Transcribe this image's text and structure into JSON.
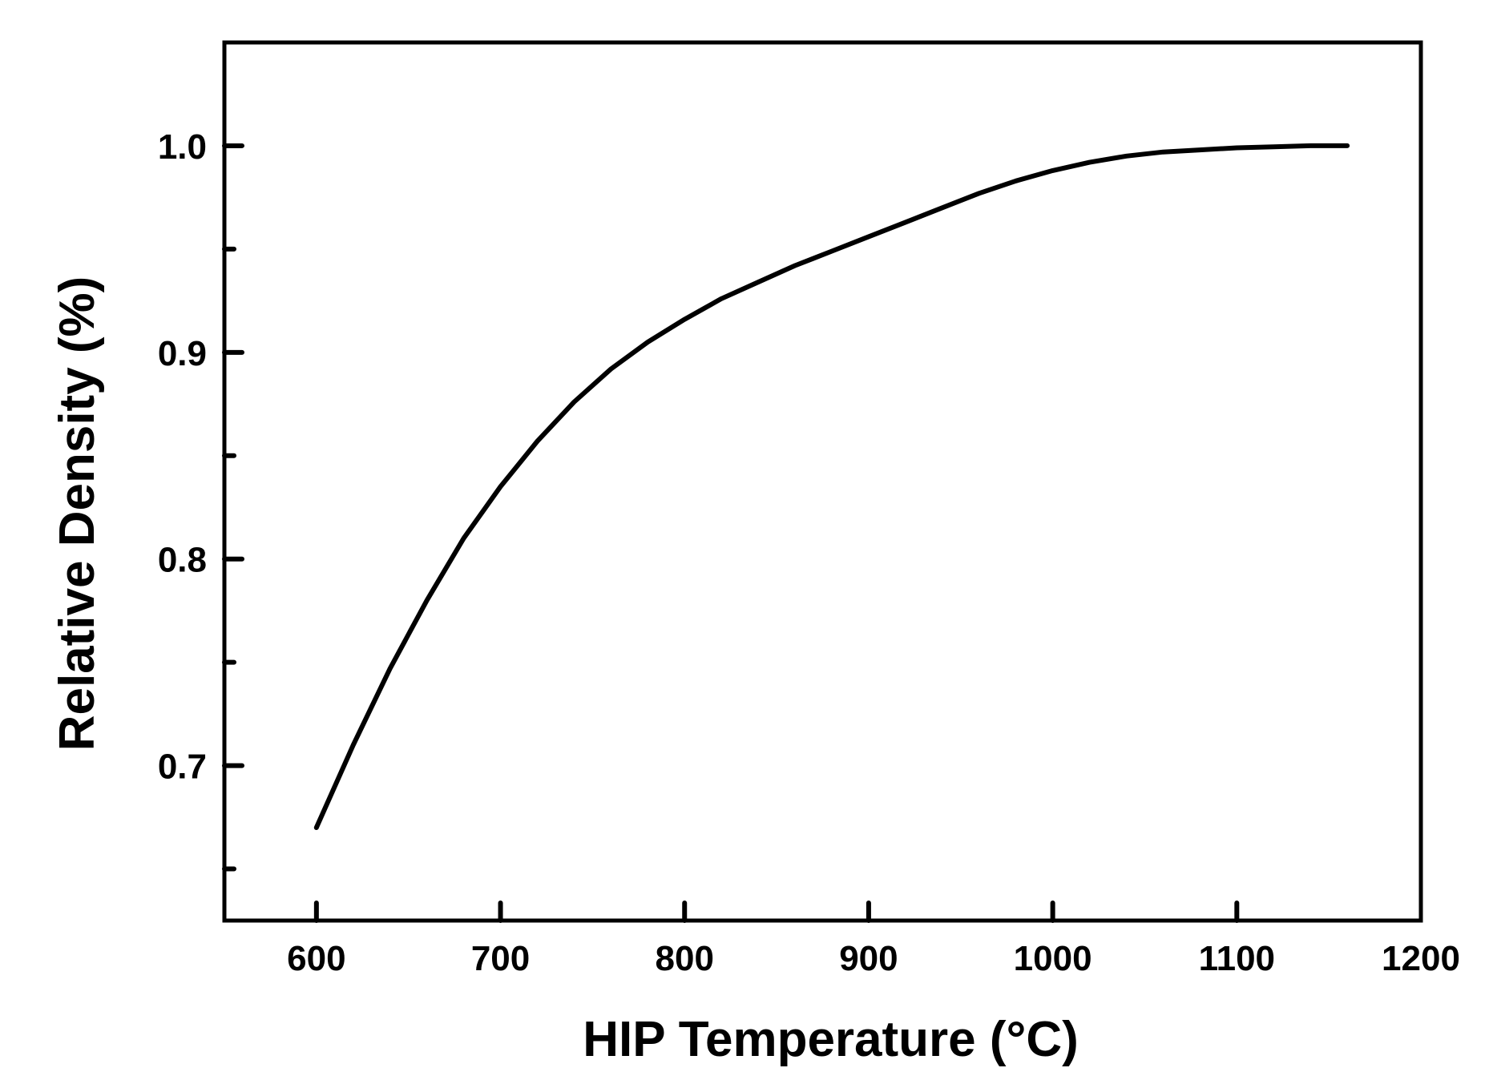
{
  "chart_data": {
    "type": "line",
    "title": "",
    "xlabel": "HIP Temperature (°C)",
    "ylabel": "Relative Density (%)",
    "xlim": [
      550,
      1200
    ],
    "ylim": [
      0.625,
      1.05
    ],
    "xticks": [
      600,
      700,
      800,
      900,
      1000,
      1100,
      1200
    ],
    "yticks": [
      0.7,
      0.8,
      0.9,
      1.0
    ],
    "yticks_minor": [
      0.65,
      0.75,
      0.85,
      0.95
    ],
    "xtick_labels": [
      "600",
      "700",
      "800",
      "900",
      "1000",
      "1100",
      "1200"
    ],
    "ytick_labels": [
      "0.7",
      "0.8",
      "0.9",
      "1.0"
    ],
    "grid": false,
    "legend": "none",
    "line_color": "#000000",
    "series": [
      {
        "x": [
          600,
          620,
          640,
          660,
          680,
          700,
          720,
          740,
          760,
          780,
          800,
          820,
          840,
          860,
          880,
          900,
          920,
          940,
          960,
          980,
          1000,
          1020,
          1040,
          1060,
          1080,
          1100,
          1120,
          1140,
          1160
        ],
        "values": [
          0.67,
          0.71,
          0.747,
          0.78,
          0.81,
          0.835,
          0.857,
          0.876,
          0.892,
          0.905,
          0.916,
          0.926,
          0.934,
          0.942,
          0.949,
          0.956,
          0.963,
          0.97,
          0.977,
          0.983,
          0.988,
          0.992,
          0.995,
          0.997,
          0.998,
          0.999,
          0.9995,
          1.0,
          1.0
        ]
      }
    ]
  }
}
